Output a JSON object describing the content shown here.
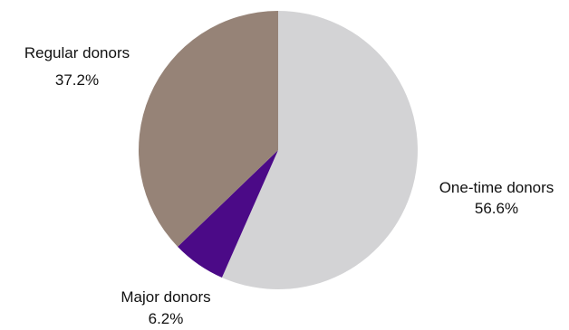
{
  "chart_data": {
    "type": "pie",
    "title": "",
    "start_angle_deg": 0,
    "direction": "clockwise",
    "legend": "none",
    "slices": [
      {
        "name": "One-time donors",
        "value": 56.6,
        "label": "56.6%",
        "color": "#d3d3d5"
      },
      {
        "name": "Major donors",
        "value": 6.2,
        "label": "6.2%",
        "color": "#4b0a87"
      },
      {
        "name": "Regular donors",
        "value": 37.2,
        "label": "37.2%",
        "color": "#968377"
      }
    ]
  }
}
